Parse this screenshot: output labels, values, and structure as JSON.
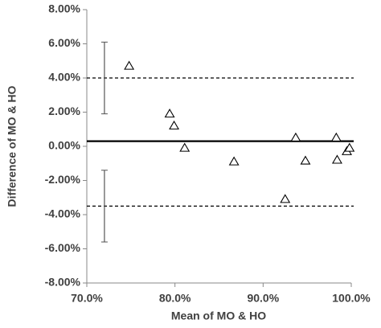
{
  "chart_data": {
    "type": "bland-altman",
    "x_label": "Mean of MO & HO",
    "y_label": "Difference of MO & HO",
    "xlim": [
      70,
      100
    ],
    "ylim": [
      -8,
      8
    ],
    "xticks": [
      {
        "value": 70,
        "label": "70.0%"
      },
      {
        "value": 80,
        "label": "80.0%"
      },
      {
        "value": 90,
        "label": "90.0%"
      },
      {
        "value": 100,
        "label": "100.0%"
      }
    ],
    "yticks": [
      {
        "value": -8,
        "label": "-8.00%"
      },
      {
        "value": -6,
        "label": "-6.00%"
      },
      {
        "value": -4,
        "label": "-4.00%"
      },
      {
        "value": -2,
        "label": "-2.00%"
      },
      {
        "value": 0,
        "label": "0.00%"
      },
      {
        "value": 2,
        "label": "2.00%"
      },
      {
        "value": 4,
        "label": "4.00%"
      },
      {
        "value": 6,
        "label": "6.00%"
      },
      {
        "value": 8,
        "label": "8.00%"
      }
    ],
    "points": {
      "x": [
        74.8,
        79.4,
        79.9,
        81.1,
        86.7,
        92.5,
        93.7,
        94.8,
        98.3,
        98.4,
        99.5,
        99.8
      ],
      "y": [
        4.7,
        1.9,
        1.2,
        -0.1,
        -0.9,
        -3.1,
        0.5,
        -0.85,
        0.5,
        -0.8,
        -0.3,
        -0.1
      ]
    },
    "reference_lines": [
      {
        "value": 0.3,
        "style": "solid"
      },
      {
        "value": 4.0,
        "style": "dashed"
      },
      {
        "value": -3.5,
        "style": "dashed"
      }
    ],
    "error_bars": [
      {
        "x": 72,
        "low": 1.9,
        "high": 6.1
      },
      {
        "x": 72,
        "low": -5.6,
        "high": -1.4
      }
    ],
    "color": "#000000"
  }
}
